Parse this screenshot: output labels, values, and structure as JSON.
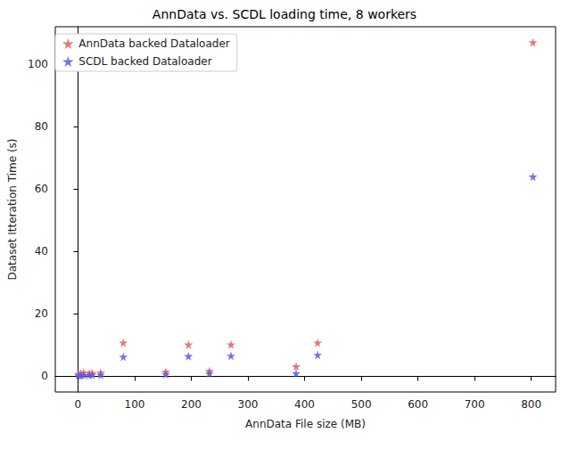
{
  "chart_data": {
    "type": "scatter",
    "title": "AnnData vs. SCDL loading time, 8 workers",
    "x_label": "AnnData File size (MB)",
    "y_label": "Dataset Itteration Time (s)",
    "x": [
      1,
      5,
      10,
      20,
      25,
      40,
      80,
      155,
      195,
      232,
      270,
      385,
      423,
      803
    ],
    "series": [
      {
        "name": "AnnData backed Dataloader",
        "color": "#e06060",
        "marker": "star",
        "values": [
          0.8,
          1.0,
          1.2,
          1.0,
          1.1,
          1.2,
          10.8,
          1.5,
          10.2,
          1.8,
          10.2,
          3.2,
          10.8,
          107
        ]
      },
      {
        "name": "SCDL backed Dataloader",
        "color": "#5c5ce0",
        "marker": "star",
        "values": [
          0.3,
          0.3,
          0.4,
          0.4,
          0.5,
          0.5,
          6.3,
          0.7,
          6.5,
          1.0,
          6.6,
          1.0,
          6.9,
          64
        ]
      }
    ],
    "xlim": [
      -40,
      843
    ],
    "xticks": [
      0,
      100,
      200,
      300,
      400,
      500,
      600,
      700,
      800
    ],
    "ylim": [
      -5,
      112
    ],
    "yticks": [
      0,
      20,
      40,
      60,
      80,
      100
    ],
    "grid": false,
    "legend": "upper left"
  }
}
